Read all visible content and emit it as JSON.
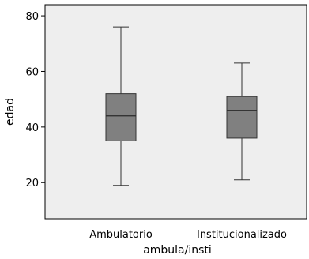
{
  "chart_data": {
    "type": "boxplot",
    "title": "",
    "xlabel": "ambula/insti",
    "ylabel": "edad",
    "ylim": [
      7,
      84
    ],
    "yticks": [
      20,
      40,
      60,
      80
    ],
    "categories": [
      "Ambulatorio",
      "Institucionalizado"
    ],
    "boxes": [
      {
        "category": "Ambulatorio",
        "min": 19,
        "q1": 35,
        "median": 44,
        "q3": 52,
        "max": 76
      },
      {
        "category": "Institucionalizado",
        "min": 21,
        "q1": 36,
        "median": 46,
        "q3": 51,
        "max": 63
      }
    ],
    "grid": false,
    "colors": {
      "plot_background": "#eeeeee",
      "box_fill": "#808080",
      "box_stroke": "#333333",
      "axis": "#000000"
    }
  }
}
